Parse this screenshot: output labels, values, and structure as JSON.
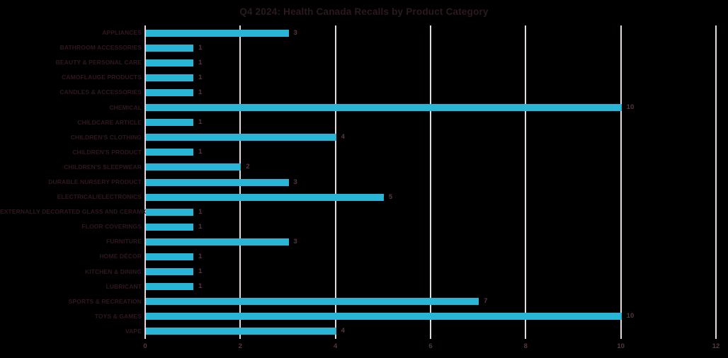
{
  "chart": {
    "title": "Q4 2024: Health Canada Recalls by Product Category"
  },
  "chart_data": {
    "type": "bar",
    "orientation": "horizontal",
    "title": "Q4 2024: Health Canada Recalls by Product Category",
    "categories": [
      "APPLIANCES",
      "BATHROOM ACCESSORIES",
      "BEAUTY & PERSONAL CARE",
      "CAMOFLAUGE PRODUCTS",
      "CANDLES & ACCESSORIES",
      "CHEMICAL",
      "CHILDCARE ARTICLE",
      "CHILDREN'S CLOTHING",
      "CHILDREN'S PRODUCT",
      "CHILDREN'S SLEEPWEAR",
      "DURABLE NURSERY PRODUCT",
      "ELECTRICAL/ELECTRONICS",
      "EXTERNALLY DECORATED GLASS AND CERAMICS",
      "FLOOR COVERINGS",
      "FURNITURE",
      "HOME DÉCOR",
      "KITCHEN & DINING",
      "LUBRICANT",
      "SPORTS & RECREATION",
      "TOYS & GAMES",
      "VAPE"
    ],
    "values": [
      3,
      1,
      1,
      1,
      1,
      10,
      1,
      4,
      1,
      2,
      3,
      5,
      1,
      1,
      3,
      1,
      1,
      1,
      7,
      10,
      4
    ],
    "xlabel": "",
    "ylabel": "",
    "xlim": [
      0,
      12
    ],
    "xticks": [
      0,
      2,
      4,
      6,
      8,
      10,
      12
    ],
    "grid": true,
    "legend": false,
    "data_labels": true,
    "colors": {
      "bar": "#29b5d5",
      "gridline": "#e4dade",
      "title": "#2b191d",
      "category_label": "#2f181d",
      "value_label": "#553840",
      "tick_label": "#553840",
      "background": "#000000"
    }
  }
}
